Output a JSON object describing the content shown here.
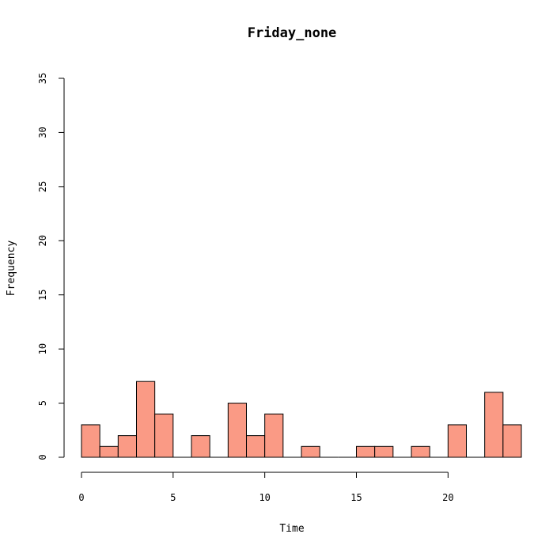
{
  "chart_data": {
    "type": "bar",
    "title": "Friday_none",
    "xlabel": "Time",
    "ylabel": "Frequency",
    "bar_color": "#FA9A85",
    "bin_width": 1,
    "xlim": [
      0,
      24
    ],
    "ylim": [
      0,
      35
    ],
    "x_ticks": [
      0,
      5,
      10,
      15,
      20
    ],
    "y_ticks": [
      0,
      5,
      10,
      15,
      20,
      25,
      30,
      35
    ],
    "bins": [
      {
        "start": 0,
        "end": 1,
        "count": 3
      },
      {
        "start": 1,
        "end": 2,
        "count": 1
      },
      {
        "start": 2,
        "end": 3,
        "count": 2
      },
      {
        "start": 3,
        "end": 4,
        "count": 7
      },
      {
        "start": 4,
        "end": 5,
        "count": 4
      },
      {
        "start": 5,
        "end": 6,
        "count": 0
      },
      {
        "start": 6,
        "end": 7,
        "count": 2
      },
      {
        "start": 7,
        "end": 8,
        "count": 0
      },
      {
        "start": 8,
        "end": 9,
        "count": 5
      },
      {
        "start": 9,
        "end": 10,
        "count": 2
      },
      {
        "start": 10,
        "end": 11,
        "count": 4
      },
      {
        "start": 11,
        "end": 12,
        "count": 0
      },
      {
        "start": 12,
        "end": 13,
        "count": 1
      },
      {
        "start": 13,
        "end": 14,
        "count": 0
      },
      {
        "start": 14,
        "end": 15,
        "count": 0
      },
      {
        "start": 15,
        "end": 16,
        "count": 1
      },
      {
        "start": 16,
        "end": 17,
        "count": 1
      },
      {
        "start": 17,
        "end": 18,
        "count": 0
      },
      {
        "start": 18,
        "end": 19,
        "count": 1
      },
      {
        "start": 19,
        "end": 20,
        "count": 0
      },
      {
        "start": 20,
        "end": 21,
        "count": 3
      },
      {
        "start": 21,
        "end": 22,
        "count": 0
      },
      {
        "start": 22,
        "end": 23,
        "count": 6
      },
      {
        "start": 23,
        "end": 24,
        "count": 3
      }
    ]
  }
}
